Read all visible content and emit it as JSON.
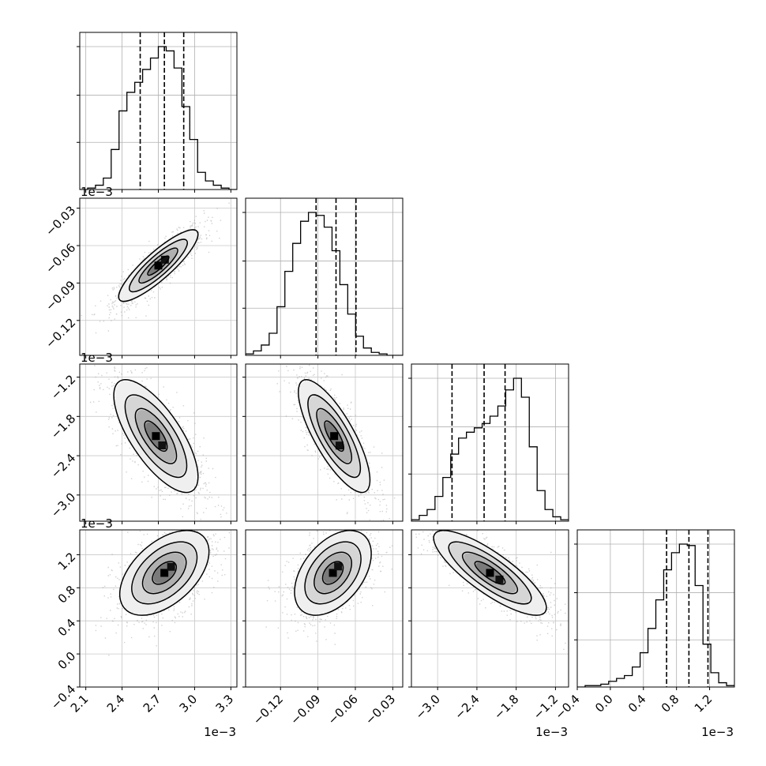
{
  "chart_data": {
    "type": "corner",
    "parameters": [
      {
        "key": "p0",
        "range": [
          2.05,
          3.35
        ],
        "ticks": [
          2.1,
          2.4,
          2.7,
          3.0,
          3.3
        ],
        "tick_labels": [
          "2.1",
          "2.4",
          "2.7",
          "3.0",
          "3.3"
        ],
        "offset_label": "1e−3",
        "quantiles": [
          2.55,
          2.75,
          2.91
        ]
      },
      {
        "key": "p1",
        "range": [
          -0.148,
          -0.022
        ],
        "ticks": [
          -0.12,
          -0.09,
          -0.06,
          -0.03
        ],
        "tick_labels": [
          "−0.12",
          "−0.09",
          "−0.06",
          "−0.03"
        ],
        "offset_label": "1e−3",
        "quantiles": [
          -0.0915,
          -0.0755,
          -0.0595
        ]
      },
      {
        "key": "p2",
        "range": [
          -3.4,
          -1.0
        ],
        "ticks": [
          -3.0,
          -2.4,
          -1.8,
          -1.2
        ],
        "tick_labels": [
          "−3.0",
          "−2.4",
          "−1.8",
          "−1.2"
        ],
        "offset_label": "1e−3",
        "quantiles": [
          -2.78,
          -2.29,
          -1.97
        ]
      },
      {
        "key": "p3",
        "range": [
          -0.4,
          1.5
        ],
        "ticks": [
          -0.4,
          0.0,
          0.4,
          0.8,
          1.2
        ],
        "tick_labels": [
          "−0.4",
          "0.0",
          "0.4",
          "0.8",
          "1.2"
        ],
        "offset_label": "1e−3",
        "quantiles": [
          0.68,
          0.95,
          1.18
        ]
      }
    ],
    "histograms": [
      [
        0,
        1,
        3,
        8,
        28,
        55,
        68,
        75,
        84,
        92,
        100,
        97,
        85,
        58,
        35,
        12,
        6,
        3,
        1,
        0
      ],
      [
        1,
        3,
        7,
        15,
        33,
        57,
        76,
        91,
        97,
        95,
        87,
        71,
        48,
        28,
        13,
        5,
        2,
        1,
        0,
        0
      ],
      [
        1,
        4,
        8,
        17,
        30,
        46,
        57,
        61,
        64,
        67,
        72,
        79,
        90,
        98,
        85,
        51,
        21,
        8,
        3,
        1
      ],
      [
        0,
        1,
        1,
        2,
        4,
        6,
        8,
        14,
        24,
        41,
        61,
        82,
        94,
        100,
        99,
        71,
        30,
        10,
        3,
        1
      ]
    ],
    "pairs": [
      {
        "i": 1,
        "j": 0,
        "center": [
          2.7,
          -0.076
        ],
        "sigma": [
          0.16,
          0.014
        ],
        "rho": 0.87
      },
      {
        "i": 2,
        "j": 0,
        "center": [
          2.68,
          -2.1
        ],
        "sigma": [
          0.17,
          0.42
        ],
        "rho": -0.72
      },
      {
        "i": 2,
        "j": 1,
        "center": [
          -0.077,
          -2.1
        ],
        "sigma": [
          0.014,
          0.42
        ],
        "rho": -0.78
      },
      {
        "i": 3,
        "j": 0,
        "center": [
          2.75,
          0.98
        ],
        "sigma": [
          0.18,
          0.25
        ],
        "rho": 0.5
      },
      {
        "i": 3,
        "j": 1,
        "center": [
          -0.078,
          0.98
        ],
        "sigma": [
          0.015,
          0.25
        ],
        "rho": 0.45
      },
      {
        "i": 3,
        "j": 2,
        "center": [
          -2.2,
          0.98
        ],
        "sigma": [
          0.42,
          0.25
        ],
        "rho": -0.82
      }
    ],
    "grid": true
  }
}
